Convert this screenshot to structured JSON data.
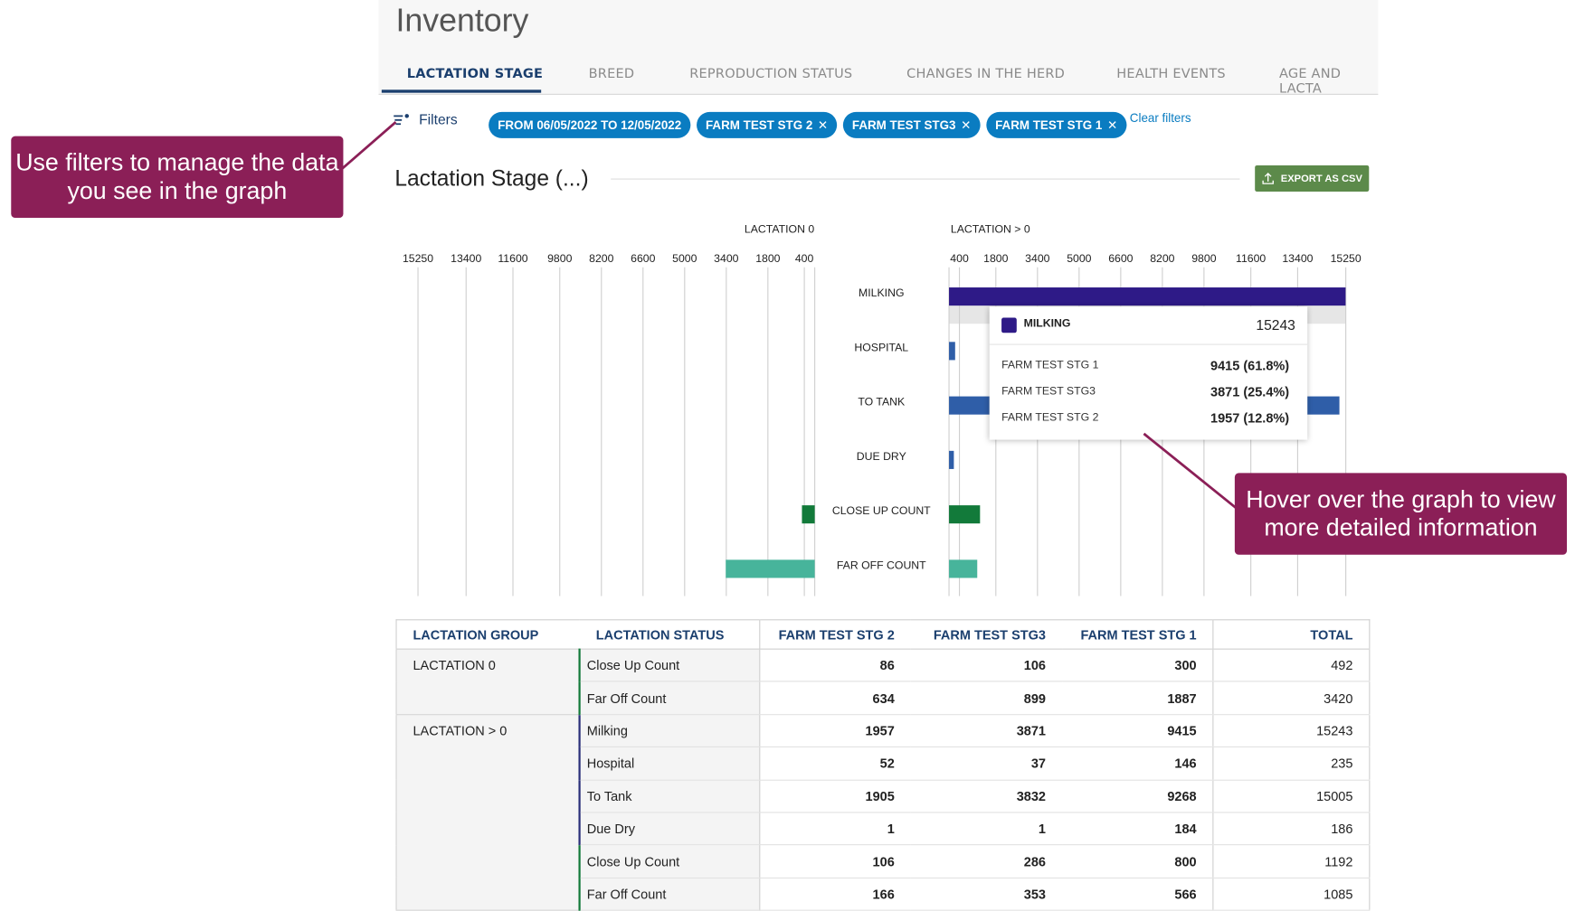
{
  "header": {
    "title": "Inventory"
  },
  "tabs": [
    "LACTATION STAGE",
    "BREED",
    "REPRODUCTION STATUS",
    "CHANGES IN THE HERD",
    "HEALTH EVENTS",
    "AGE AND LACTA"
  ],
  "filters": {
    "label": "Filters",
    "chips": [
      "FROM 06/05/2022 TO 12/05/2022",
      "FARM TEST STG 2",
      "FARM TEST STG3",
      "FARM TEST STG 1"
    ],
    "clear": "Clear filters"
  },
  "section": {
    "title": "Lactation Stage (...)",
    "export": "EXPORT AS CSV"
  },
  "chart_data": {
    "type": "bar",
    "orientation": "horizontal",
    "categories": [
      "MILKING",
      "HOSPITAL",
      "TO TANK",
      "DUE DRY",
      "CLOSE UP COUNT",
      "FAR OFF COUNT"
    ],
    "colors": [
      "#2e1a87",
      "#2f5ea8",
      "#2f5ea8",
      "#2f5ea8",
      "#127a3a",
      "#47b49b"
    ],
    "grid": true,
    "panels": [
      {
        "title": "LACTATION 0",
        "reversed": true,
        "values": [
          null,
          null,
          null,
          null,
          492,
          3420
        ],
        "xlim": [
          0,
          15250
        ],
        "xticks": [
          400,
          1800,
          3400,
          5000,
          6600,
          8200,
          9800,
          11600,
          13400,
          15250
        ]
      },
      {
        "title": "LACTATION > 0",
        "reversed": false,
        "values": [
          15243,
          235,
          15005,
          186,
          1192,
          1085
        ],
        "xlim": [
          0,
          15250
        ],
        "xticks": [
          400,
          1800,
          3400,
          5000,
          6600,
          8200,
          9800,
          11600,
          13400,
          15250
        ]
      }
    ]
  },
  "tooltip": {
    "name": "MILKING",
    "total": 15243,
    "rows": [
      {
        "label": "FARM TEST STG 1",
        "value": "9415 (61.8%)"
      },
      {
        "label": "FARM TEST STG3",
        "value": "3871 (25.4%)"
      },
      {
        "label": "FARM TEST STG 2",
        "value": "1957 (12.8%)"
      }
    ]
  },
  "table": {
    "columns": [
      "LACTATION GROUP",
      "LACTATION STATUS",
      "FARM TEST STG 2",
      "FARM TEST STG3",
      "FARM TEST STG 1",
      "TOTAL"
    ],
    "groups": [
      {
        "name": "LACTATION 0",
        "rows": [
          [
            "Close Up Count",
            86,
            106,
            300,
            492
          ],
          [
            "Far Off Count",
            634,
            899,
            1887,
            3420
          ]
        ]
      },
      {
        "name": "LACTATION > 0",
        "rows": [
          [
            "Milking",
            1957,
            3871,
            9415,
            15243
          ],
          [
            "Hospital",
            52,
            37,
            146,
            235
          ],
          [
            "To Tank",
            1905,
            3832,
            9268,
            15005
          ],
          [
            "Due Dry",
            1,
            1,
            184,
            186
          ],
          [
            "Close Up Count",
            106,
            286,
            800,
            1192
          ],
          [
            "Far Off Count",
            166,
            353,
            566,
            1085
          ]
        ]
      }
    ]
  },
  "callouts": [
    "Use filters to manage the data you see in the graph",
    "Hover over the graph to view more detailed information"
  ]
}
